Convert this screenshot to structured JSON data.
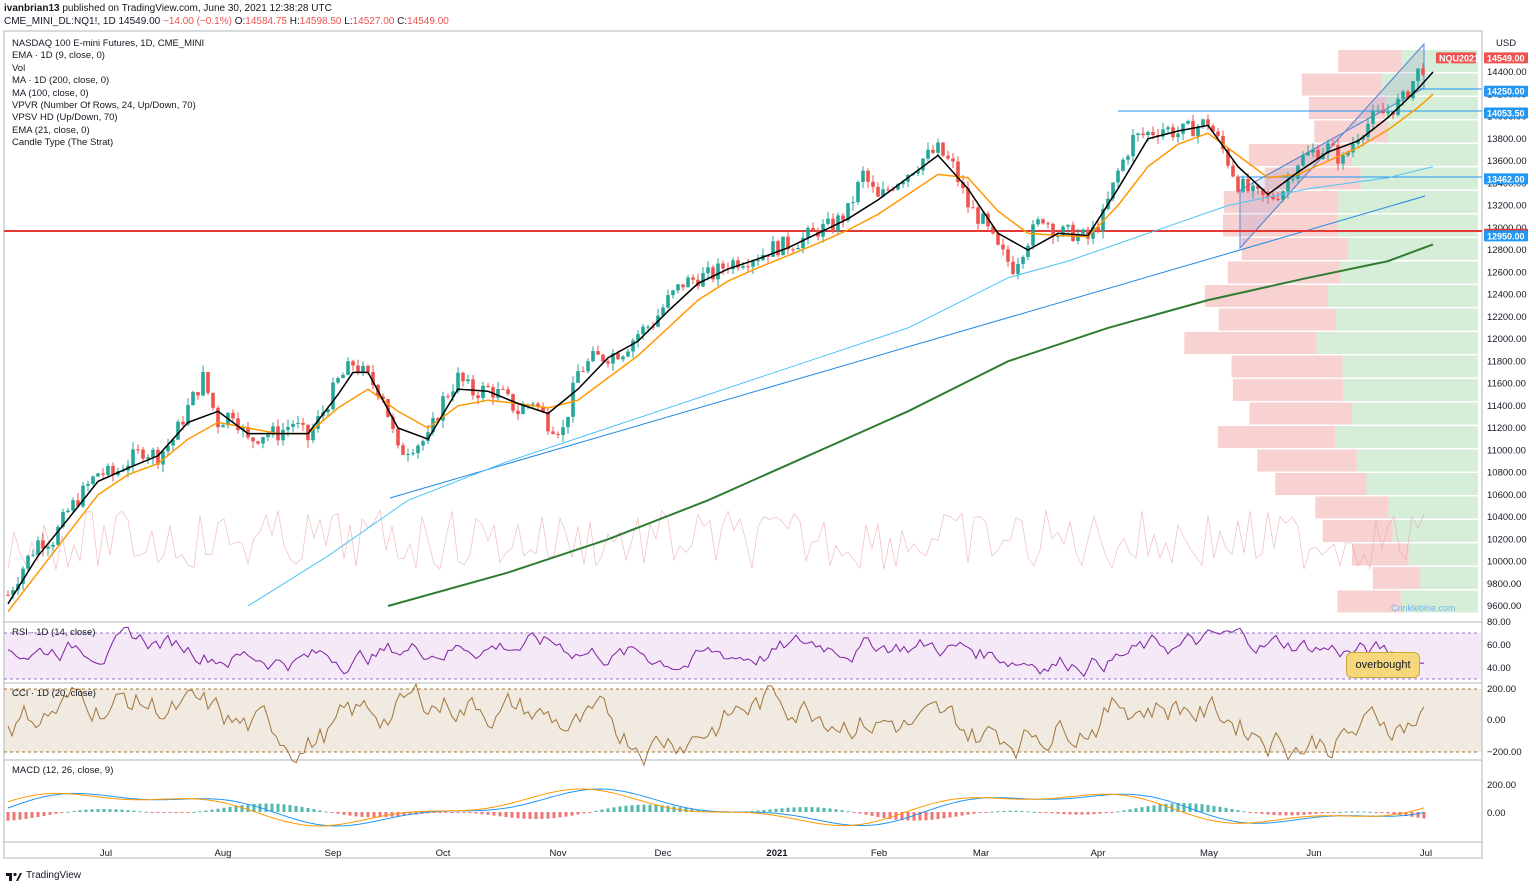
{
  "header": {
    "line1_user": "ivanbrian13",
    "line1_text": "published on TradingView.com, June 30, 2021 12:38:28 UTC",
    "symbol": "CME_MINI_DL:NQ1!, 1D",
    "last": "14549.00",
    "change": "−14.00 (−0.1%)",
    "o_label": "O:",
    "o_val": "14584.75",
    "h_label": "H:",
    "h_val": "14598.50",
    "l_label": "L:",
    "l_val": "14527.00",
    "c_label": "C:",
    "c_val": "14549.00"
  },
  "legend": [
    "NASDAQ 100 E-mini Futures, 1D, CME_MINI",
    "EMA · 1D (9, close, 0)",
    "Vol",
    "MA · 1D (200, close, 0)",
    "MA (100, close, 0)",
    "VPVR (Number Of Rows, 24, Up/Down, 70)",
    "VPSV HD (Up/Down, 70)",
    "EMA (21, close, 0)",
    "Candle Type (The Strat)"
  ],
  "panes": {
    "rsi_title": "RSI · 1D (14, close)",
    "cci_title": "CCI · 1D (20, close)",
    "macd_title": "MACD (12, 26, close, 9)"
  },
  "annotation": "overbought",
  "watermark": "Crinklebine.com",
  "footer": "TradingView",
  "price_axis": {
    "currency": "USD",
    "ticks": [
      "9600.00",
      "9800.00",
      "10000.00",
      "10200.00",
      "10400.00",
      "10600.00",
      "10800.00",
      "11000.00",
      "11200.00",
      "11400.00",
      "11600.00",
      "11800.00",
      "12000.00",
      "12200.00",
      "12400.00",
      "12600.00",
      "12800.00",
      "13000.00",
      "13200.00",
      "13400.00",
      "13600.00",
      "13800.00",
      "14000.00",
      "14200.00",
      "14400.00"
    ],
    "badges": [
      {
        "text": "NQU2021",
        "color": "#ef5350"
      },
      {
        "text": "14549.00",
        "color": "#ef5350"
      },
      {
        "text": "14250.00",
        "color": "#2196f3"
      },
      {
        "text": "14053.50",
        "color": "#2196f3"
      },
      {
        "text": "13462.00",
        "color": "#2196f3"
      },
      {
        "text": "12964.00",
        "color": "#e53935"
      },
      {
        "text": "12950.00",
        "color": "#2196f3"
      }
    ]
  },
  "rsi_axis": [
    "80.00",
    "60.00",
    "40.00"
  ],
  "cci_axis": [
    "200.00",
    "0.00",
    "−200.00"
  ],
  "macd_axis": [
    "200.00",
    "0.00"
  ],
  "time_axis": [
    "Jul",
    "Aug",
    "Sep",
    "Oct",
    "Nov",
    "Dec",
    "2021",
    "Feb",
    "Mar",
    "Apr",
    "May",
    "Jun",
    "Jul"
  ],
  "colors": {
    "up": "#26a69a",
    "down": "#ef5350",
    "ema9": "#000000",
    "ema21": "#ff9800",
    "ma200": "#2e7d32",
    "ma100": "#4fc3f7",
    "support": "#e53935",
    "rsi": "#7b1fa2",
    "cci": "#a0743a",
    "macd": "#2196f3",
    "signal": "#ff9800"
  },
  "chart_data": {
    "type": "candlestick",
    "symbol": "NQ1!",
    "interval": "1D",
    "x_range": [
      "2020-06",
      "2021-07"
    ],
    "ylim": [
      9500,
      14650
    ],
    "key_levels": [
      14250.0,
      14053.5,
      13462.0,
      12964.0,
      12950.0
    ],
    "last_close": 14549.0,
    "series": [
      {
        "name": "close",
        "points": [
          [
            0,
            9700
          ],
          [
            15,
            9950
          ],
          [
            30,
            10180
          ],
          [
            45,
            10200
          ],
          [
            60,
            10450
          ],
          [
            75,
            10620
          ],
          [
            90,
            10800
          ],
          [
            105,
            10780
          ],
          [
            120,
            10900
          ],
          [
            135,
            11000
          ],
          [
            150,
            10950
          ],
          [
            165,
            11100
          ],
          [
            180,
            11380
          ],
          [
            195,
            11650
          ],
          [
            210,
            11250
          ],
          [
            225,
            11350
          ],
          [
            240,
            11080
          ],
          [
            255,
            11150
          ],
          [
            270,
            11150
          ],
          [
            285,
            11250
          ],
          [
            300,
            11100
          ],
          [
            315,
            11350
          ],
          [
            330,
            11620
          ],
          [
            345,
            11780
          ],
          [
            360,
            11650
          ],
          [
            375,
            11500
          ],
          [
            390,
            10980
          ],
          [
            405,
            11050
          ],
          [
            420,
            11100
          ],
          [
            435,
            11450
          ],
          [
            450,
            11650
          ],
          [
            465,
            11520
          ],
          [
            480,
            11550
          ],
          [
            495,
            11490
          ],
          [
            510,
            11350
          ],
          [
            525,
            11450
          ],
          [
            540,
            11250
          ],
          [
            555,
            11180
          ],
          [
            570,
            11700
          ],
          [
            585,
            11820
          ],
          [
            600,
            11850
          ],
          [
            615,
            11900
          ],
          [
            630,
            12050
          ],
          [
            645,
            12150
          ],
          [
            660,
            12350
          ],
          [
            675,
            12500
          ],
          [
            690,
            12550
          ],
          [
            705,
            12580
          ],
          [
            720,
            12680
          ],
          [
            735,
            12720
          ],
          [
            750,
            12750
          ],
          [
            765,
            12820
          ],
          [
            780,
            12850
          ],
          [
            795,
            12900
          ],
          [
            810,
            12980
          ],
          [
            825,
            13020
          ],
          [
            840,
            13150
          ],
          [
            855,
            13480
          ],
          [
            870,
            13250
          ],
          [
            885,
            13400
          ],
          [
            900,
            13500
          ],
          [
            915,
            13620
          ],
          [
            930,
            13700
          ],
          [
            945,
            13550
          ],
          [
            960,
            13200
          ],
          [
            975,
            13050
          ],
          [
            990,
            12800
          ],
          [
            1005,
            12650
          ],
          [
            1020,
            12900
          ],
          [
            1035,
            13100
          ],
          [
            1050,
            12950
          ],
          [
            1065,
            12950
          ],
          [
            1080,
            12900
          ],
          [
            1095,
            13100
          ],
          [
            1110,
            13500
          ],
          [
            1125,
            13800
          ],
          [
            1140,
            13850
          ],
          [
            1155,
            13900
          ],
          [
            1170,
            13850
          ],
          [
            1185,
            13900
          ],
          [
            1200,
            13950
          ],
          [
            1215,
            13700
          ],
          [
            1230,
            13400
          ],
          [
            1245,
            13300
          ],
          [
            1260,
            13250
          ],
          [
            1275,
            13350
          ],
          [
            1290,
            13600
          ],
          [
            1305,
            13680
          ],
          [
            1320,
            13720
          ],
          [
            1335,
            13600
          ],
          [
            1350,
            13850
          ],
          [
            1365,
            13980
          ],
          [
            1380,
            14050
          ],
          [
            1395,
            14150
          ],
          [
            1410,
            14400
          ],
          [
            1425,
            14549
          ]
        ]
      },
      {
        "name": "EMA 9",
        "points": [
          [
            0,
            9620
          ],
          [
            30,
            10050
          ],
          [
            60,
            10380
          ],
          [
            90,
            10720
          ],
          [
            120,
            10840
          ],
          [
            150,
            10950
          ],
          [
            180,
            11250
          ],
          [
            210,
            11350
          ],
          [
            240,
            11150
          ],
          [
            270,
            11150
          ],
          [
            300,
            11150
          ],
          [
            330,
            11500
          ],
          [
            345,
            11700
          ],
          [
            360,
            11700
          ],
          [
            390,
            11200
          ],
          [
            420,
            11100
          ],
          [
            450,
            11550
          ],
          [
            480,
            11530
          ],
          [
            510,
            11420
          ],
          [
            540,
            11330
          ],
          [
            570,
            11550
          ],
          [
            600,
            11830
          ],
          [
            630,
            11980
          ],
          [
            660,
            12250
          ],
          [
            690,
            12500
          ],
          [
            720,
            12630
          ],
          [
            750,
            12720
          ],
          [
            780,
            12820
          ],
          [
            810,
            12950
          ],
          [
            840,
            13080
          ],
          [
            870,
            13250
          ],
          [
            900,
            13450
          ],
          [
            930,
            13650
          ],
          [
            960,
            13350
          ],
          [
            990,
            12950
          ],
          [
            1020,
            12800
          ],
          [
            1050,
            12950
          ],
          [
            1080,
            12930
          ],
          [
            1110,
            13350
          ],
          [
            1140,
            13800
          ],
          [
            1170,
            13870
          ],
          [
            1200,
            13920
          ],
          [
            1230,
            13550
          ],
          [
            1260,
            13300
          ],
          [
            1290,
            13500
          ],
          [
            1320,
            13680
          ],
          [
            1350,
            13780
          ],
          [
            1380,
            13990
          ],
          [
            1410,
            14250
          ],
          [
            1425,
            14400
          ]
        ]
      },
      {
        "name": "EMA 21",
        "points": [
          [
            0,
            9550
          ],
          [
            30,
            9900
          ],
          [
            60,
            10250
          ],
          [
            90,
            10600
          ],
          [
            120,
            10780
          ],
          [
            150,
            10880
          ],
          [
            180,
            11100
          ],
          [
            210,
            11250
          ],
          [
            240,
            11200
          ],
          [
            270,
            11150
          ],
          [
            300,
            11150
          ],
          [
            330,
            11380
          ],
          [
            360,
            11550
          ],
          [
            390,
            11350
          ],
          [
            420,
            11200
          ],
          [
            450,
            11400
          ],
          [
            480,
            11450
          ],
          [
            510,
            11420
          ],
          [
            540,
            11380
          ],
          [
            570,
            11450
          ],
          [
            600,
            11650
          ],
          [
            630,
            11850
          ],
          [
            660,
            12100
          ],
          [
            690,
            12350
          ],
          [
            720,
            12520
          ],
          [
            750,
            12640
          ],
          [
            780,
            12750
          ],
          [
            810,
            12860
          ],
          [
            840,
            12980
          ],
          [
            870,
            13120
          ],
          [
            900,
            13300
          ],
          [
            930,
            13480
          ],
          [
            960,
            13450
          ],
          [
            990,
            13150
          ],
          [
            1020,
            12950
          ],
          [
            1050,
            12930
          ],
          [
            1080,
            12920
          ],
          [
            1110,
            13200
          ],
          [
            1140,
            13550
          ],
          [
            1170,
            13750
          ],
          [
            1200,
            13850
          ],
          [
            1230,
            13650
          ],
          [
            1260,
            13450
          ],
          [
            1290,
            13480
          ],
          [
            1320,
            13600
          ],
          [
            1350,
            13720
          ],
          [
            1380,
            13880
          ],
          [
            1410,
            14080
          ],
          [
            1425,
            14200
          ]
        ]
      },
      {
        "name": "MA 200",
        "points": [
          [
            380,
            9600
          ],
          [
            500,
            9900
          ],
          [
            600,
            10200
          ],
          [
            700,
            10550
          ],
          [
            800,
            10950
          ],
          [
            900,
            11350
          ],
          [
            1000,
            11800
          ],
          [
            1100,
            12100
          ],
          [
            1200,
            12350
          ],
          [
            1300,
            12550
          ],
          [
            1380,
            12700
          ],
          [
            1425,
            12850
          ]
        ]
      },
      {
        "name": "MA 100",
        "points": [
          [
            240,
            9600
          ],
          [
            320,
            10050
          ],
          [
            400,
            10550
          ],
          [
            500,
            10900
          ],
          [
            600,
            11200
          ],
          [
            700,
            11500
          ],
          [
            800,
            11800
          ],
          [
            900,
            12100
          ],
          [
            1000,
            12550
          ],
          [
            1060,
            12700
          ],
          [
            1140,
            12950
          ],
          [
            1220,
            13200
          ],
          [
            1300,
            13350
          ],
          [
            1380,
            13450
          ],
          [
            1425,
            13550
          ]
        ]
      }
    ]
  }
}
